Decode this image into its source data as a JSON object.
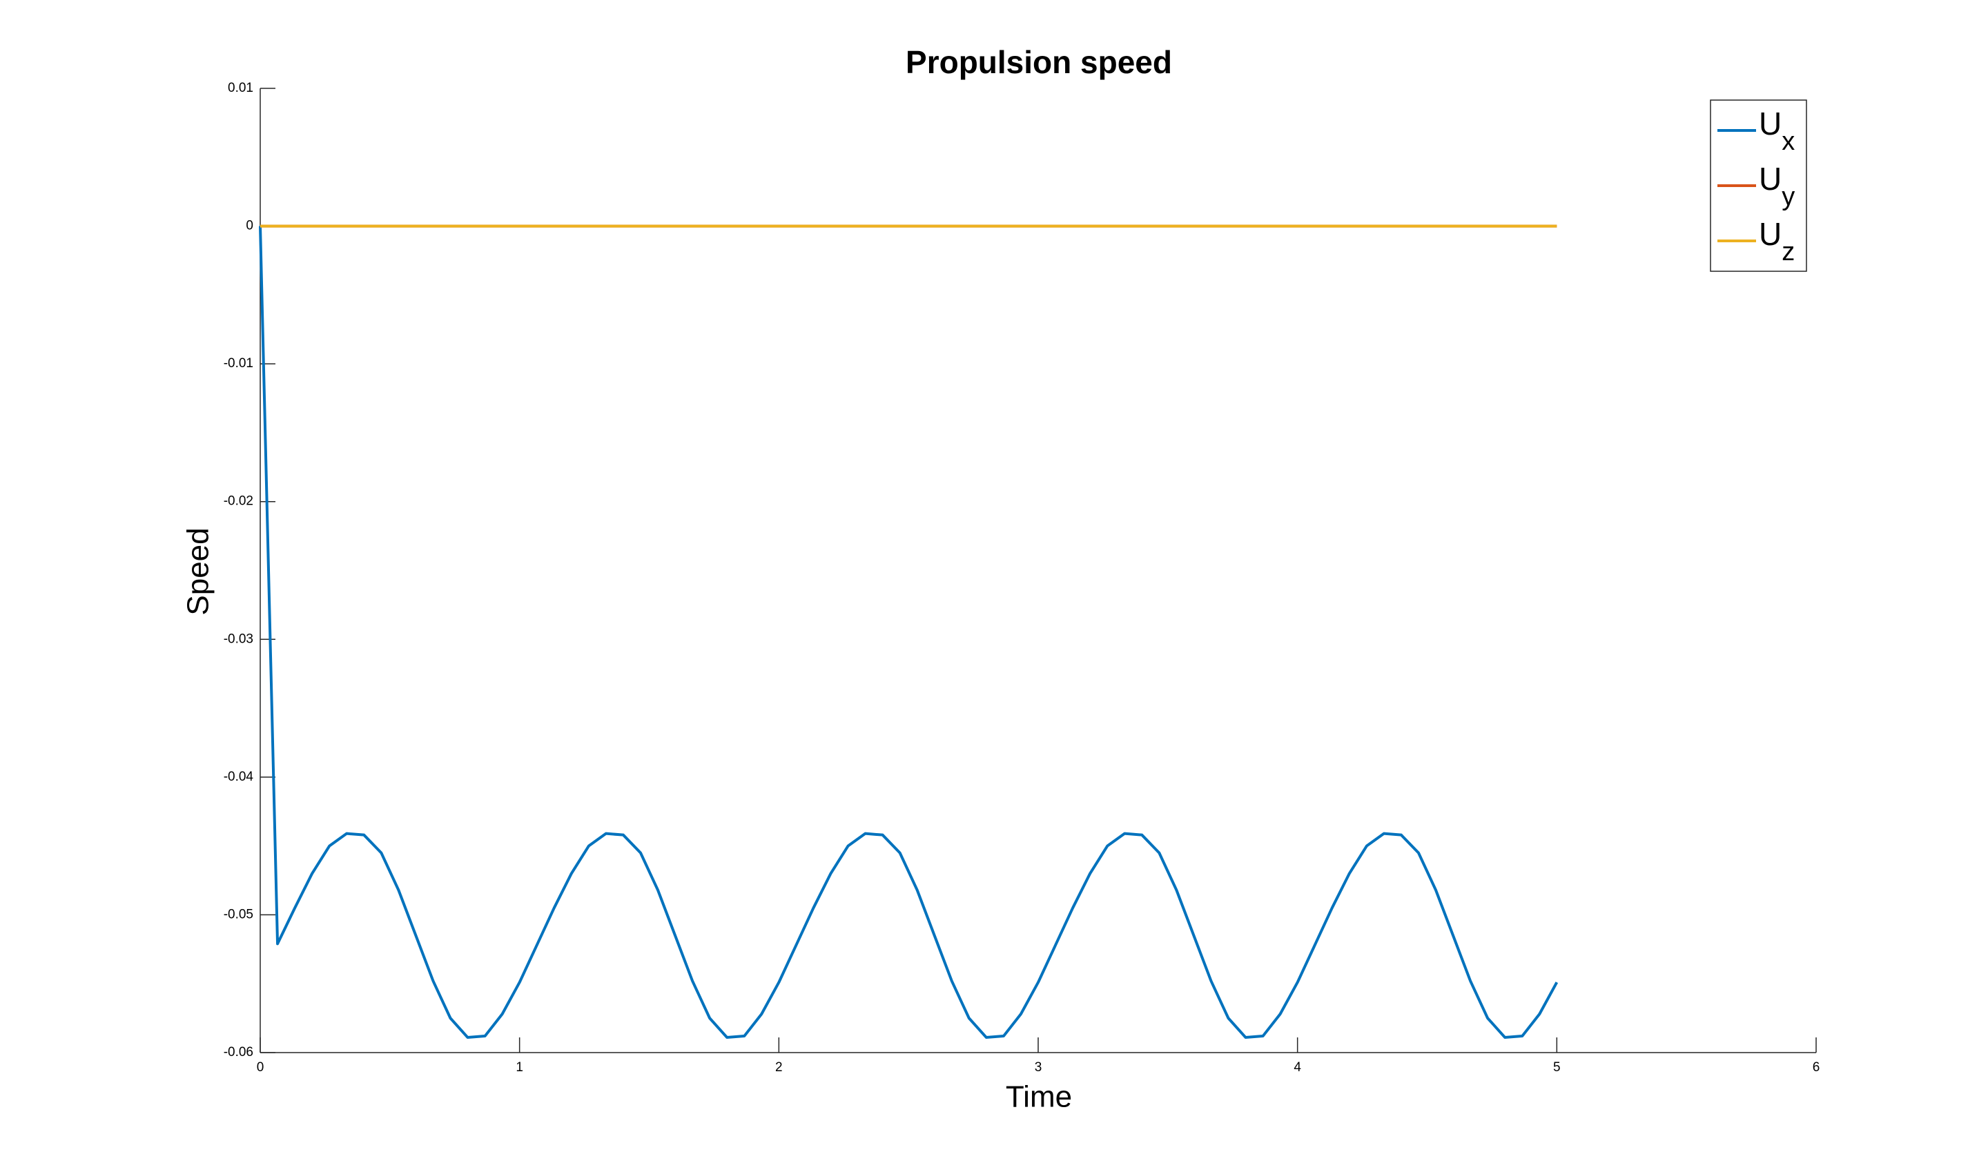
{
  "chart_data": {
    "type": "line",
    "title": "Propulsion speed",
    "x_label": "Time",
    "y_label": "Speed",
    "x": [
      0,
      0.0667,
      0.1333,
      0.2,
      0.2667,
      0.3333,
      0.4,
      0.4667,
      0.5333,
      0.6,
      0.6667,
      0.7333,
      0.8,
      0.8667,
      0.9333,
      1,
      1.0667,
      1.1333,
      1.2,
      1.2667,
      1.3333,
      1.4,
      1.4667,
      1.5333,
      1.6,
      1.6667,
      1.7333,
      1.8,
      1.8667,
      1.9333,
      2,
      2.0667,
      2.1333,
      2.2,
      2.2667,
      2.3333,
      2.4,
      2.4667,
      2.5333,
      2.6,
      2.6667,
      2.7333,
      2.8,
      2.8667,
      2.9333,
      3,
      3.0667,
      3.1333,
      3.2,
      3.2667,
      3.3333,
      3.4,
      3.4667,
      3.5333,
      3.6,
      3.6667,
      3.7333,
      3.8,
      3.8667,
      3.9333,
      4,
      4.0667,
      4.1333,
      4.2,
      4.2667,
      4.3333,
      4.4,
      4.4667,
      4.5333,
      4.6,
      4.6667,
      4.7333,
      4.8,
      4.8667,
      4.9333,
      5
    ],
    "series": [
      {
        "name": "Ux",
        "color": "#0072bd",
        "values": [
          0,
          -0.0521,
          -0.0495,
          -0.047,
          -0.045,
          -0.0441,
          -0.0442,
          -0.0455,
          -0.0482,
          -0.0515,
          -0.0548,
          -0.0575,
          -0.0589,
          -0.0588,
          -0.0572,
          -0.0549,
          -0.0522,
          -0.0495,
          -0.047,
          -0.045,
          -0.0441,
          -0.0442,
          -0.0455,
          -0.0482,
          -0.0515,
          -0.0548,
          -0.0575,
          -0.0589,
          -0.0588,
          -0.0572,
          -0.0549,
          -0.0522,
          -0.0495,
          -0.047,
          -0.045,
          -0.0441,
          -0.0442,
          -0.0455,
          -0.0482,
          -0.0515,
          -0.0548,
          -0.0575,
          -0.0589,
          -0.0588,
          -0.0572,
          -0.0549,
          -0.0522,
          -0.0495,
          -0.047,
          -0.045,
          -0.0441,
          -0.0442,
          -0.0455,
          -0.0482,
          -0.0515,
          -0.0548,
          -0.0575,
          -0.0589,
          -0.0588,
          -0.0572,
          -0.0549,
          -0.0522,
          -0.0495,
          -0.047,
          -0.045,
          -0.0441,
          -0.0442,
          -0.0455,
          -0.0482,
          -0.0515,
          -0.0548,
          -0.0575,
          -0.0589,
          -0.0588,
          -0.0572,
          -0.0549
        ]
      },
      {
        "name": "Uy",
        "color": "#d95319",
        "values": [
          0,
          0,
          0,
          0,
          0,
          0,
          0,
          0,
          0,
          0,
          0,
          0,
          0,
          0,
          0,
          0,
          0,
          0,
          0,
          0,
          0,
          0,
          0,
          0,
          0,
          0,
          0,
          0,
          0,
          0,
          0,
          0,
          0,
          0,
          0,
          0,
          0,
          0,
          0,
          0,
          0,
          0,
          0,
          0,
          0,
          0,
          0,
          0,
          0,
          0,
          0,
          0,
          0,
          0,
          0,
          0,
          0,
          0,
          0,
          0,
          0,
          0,
          0,
          0,
          0,
          0,
          0,
          0,
          0,
          0,
          0,
          0,
          0,
          0,
          0,
          0
        ]
      },
      {
        "name": "Uz",
        "color": "#edb120",
        "values": [
          0,
          0,
          0,
          0,
          0,
          0,
          0,
          0,
          0,
          0,
          0,
          0,
          0,
          0,
          0,
          0,
          0,
          0,
          0,
          0,
          0,
          0,
          0,
          0,
          0,
          0,
          0,
          0,
          0,
          0,
          0,
          0,
          0,
          0,
          0,
          0,
          0,
          0,
          0,
          0,
          0,
          0,
          0,
          0,
          0,
          0,
          0,
          0,
          0,
          0,
          0,
          0,
          0,
          0,
          0,
          0,
          0,
          0,
          0,
          0,
          0,
          0,
          0,
          0,
          0,
          0,
          0,
          0,
          0,
          0,
          0,
          0,
          0,
          0,
          0,
          0
        ]
      }
    ],
    "xlim": [
      0,
      6
    ],
    "xticks": [
      0,
      1,
      2,
      3,
      4,
      5,
      6
    ],
    "ylim": [
      -0.06,
      0.01
    ],
    "yticks": [
      -0.06,
      -0.05,
      -0.04,
      -0.03,
      -0.02,
      -0.01,
      0,
      0.01
    ],
    "legend": "upper right"
  }
}
